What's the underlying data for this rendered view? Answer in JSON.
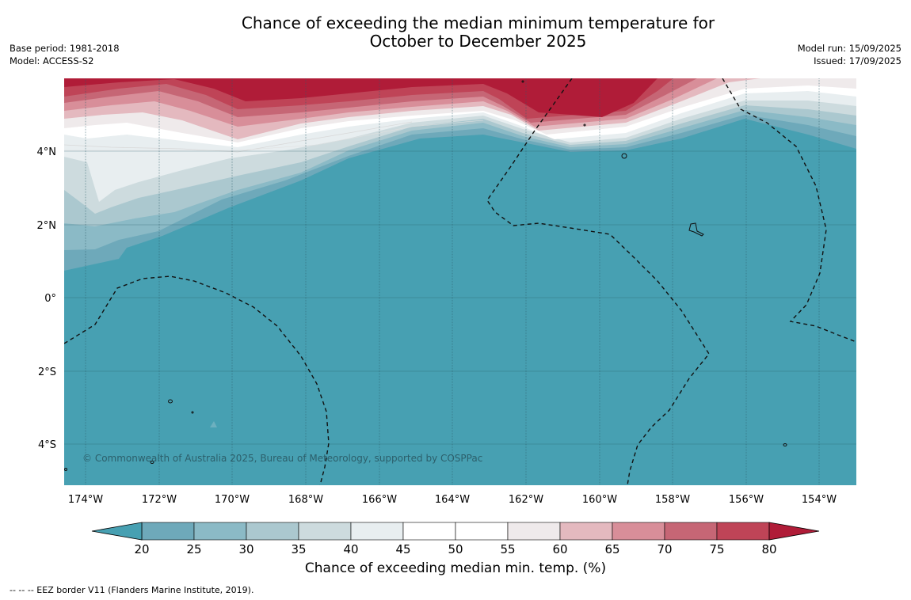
{
  "header": {
    "title_line1": "Chance of exceeding the median minimum temperature for",
    "title_line2": "October to December 2025",
    "base_period": "Base period: 1981-2018",
    "model": "Model: ACCESS-S2",
    "model_run": "Model run: 15/09/2025",
    "issued": "Issued: 17/09/2025"
  },
  "map": {
    "lon_labels": [
      "174°W",
      "172°W",
      "170°W",
      "168°W",
      "166°W",
      "164°W",
      "162°W",
      "160°W",
      "158°W",
      "156°W",
      "154°W"
    ],
    "lat_labels": [
      "4°N",
      "2°N",
      "0°",
      "2°S",
      "4°S"
    ],
    "copyright": "© Commonwealth of Australia 2025, Bureau of Meteorology, supported by COSPPac",
    "dominant_category": "20",
    "colors": {
      "below20": "#47a0b2",
      "band_20_25": "#6ea9ba",
      "band_25_30": "#8bbac6",
      "band_30_35": "#abc8cf",
      "band_35_40": "#cddbde",
      "band_40_45": "#e8eef0",
      "band_45_55": "#ffffff",
      "band_55_60": "#efeaeb",
      "band_60_65": "#e4b9bf",
      "band_65_70": "#d88e99",
      "band_70_75": "#c66675",
      "band_75_80": "#bf4457",
      "above80": "#b01c38"
    }
  },
  "colorbar": {
    "ticks": [
      "20",
      "25",
      "30",
      "35",
      "40",
      "45",
      "50",
      "55",
      "60",
      "65",
      "70",
      "75",
      "80"
    ],
    "colors": [
      "#6ea9ba",
      "#8bbac6",
      "#abc8cf",
      "#cddbde",
      "#e8eef0",
      "#ffffff",
      "#ffffff",
      "#efeaeb",
      "#e4b9bf",
      "#d88e99",
      "#c66675",
      "#bf4457"
    ],
    "low_color": "#47a0b2",
    "high_color": "#b01c38",
    "label": "Chance of exceeding median min. temp. (%)"
  },
  "footnote": "--  --  -- EEZ border V11 (Flanders Marine Institute, 2019)."
}
